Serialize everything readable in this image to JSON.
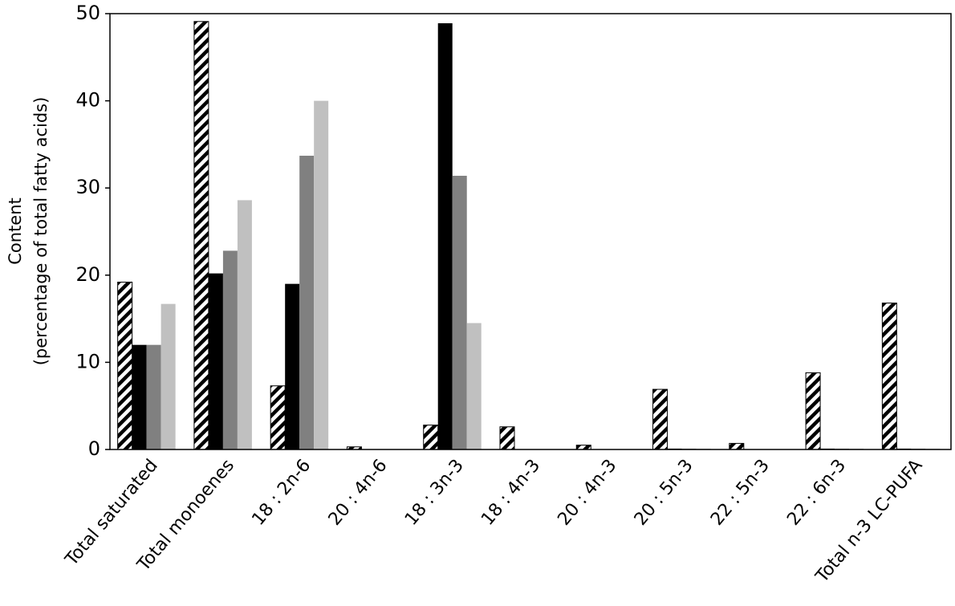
{
  "chart_data": {
    "type": "bar",
    "ylabel": [
      "Content",
      "(percentage of total fatty acids)"
    ],
    "categories": [
      "Total saturated",
      "Total monoenes",
      "18 : 2n-6",
      "20 : 4n-6",
      "18 : 3n-3",
      "18 : 4n-3",
      "20 : 4n-3",
      "20 : 5n-3",
      "22 : 5n-3",
      "22 : 6n-3",
      "Total n-3 LC-PUFA"
    ],
    "series": [
      {
        "color": "#000000",
        "pattern": "hatch",
        "values": [
          19.2,
          49.1,
          7.3,
          0.3,
          2.8,
          2.6,
          0.5,
          6.9,
          0.7,
          8.8,
          16.8
        ]
      },
      {
        "color": "#000000",
        "values": [
          12,
          20.2,
          19,
          0,
          48.9,
          0,
          0,
          0.1,
          0,
          0.1,
          0.1
        ]
      },
      {
        "color": "#808080",
        "values": [
          12,
          22.8,
          33.7,
          0,
          31.4,
          0,
          0,
          0.1,
          0,
          0.1,
          0.1
        ]
      },
      {
        "color": "#c0c0c0",
        "values": [
          16.7,
          28.6,
          40,
          0,
          14.5,
          0,
          0,
          0.1,
          0,
          0.1,
          0.1
        ]
      }
    ],
    "ylim": [
      0,
      50
    ],
    "yticks": [
      0,
      10,
      20,
      30,
      40,
      50
    ],
    "grid": false
  }
}
